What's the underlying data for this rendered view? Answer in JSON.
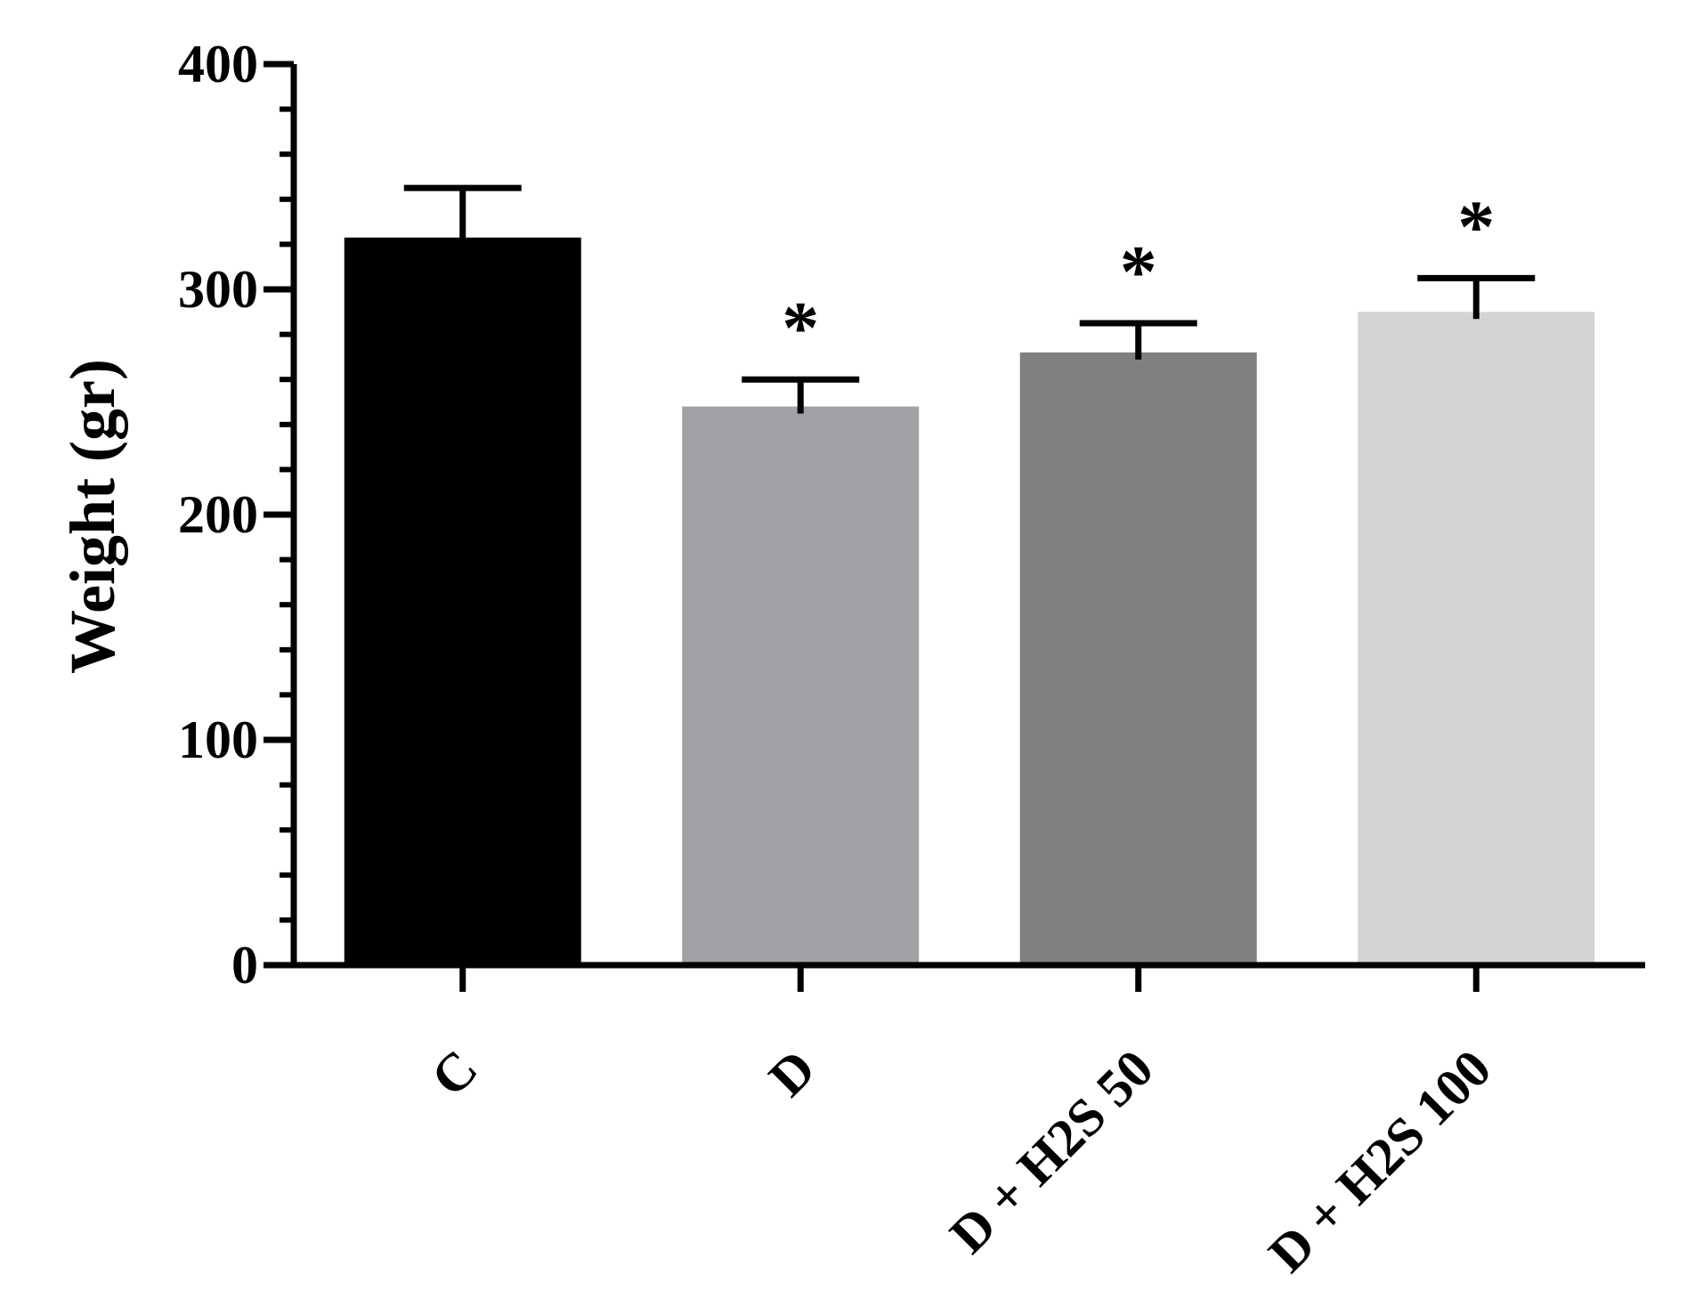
{
  "chart_data": {
    "type": "bar",
    "title": "",
    "xlabel": "",
    "ylabel": "Weight (gr)",
    "ylim": [
      0,
      400
    ],
    "yticks": [
      0,
      100,
      200,
      300,
      400
    ],
    "minor_tick_step": 20,
    "grid": false,
    "legend": "none",
    "categories": [
      "C",
      "D",
      "D + H2S 50",
      "D + H2S 100"
    ],
    "values": [
      323,
      248,
      272,
      290
    ],
    "errors": [
      22,
      12,
      13,
      15
    ],
    "colors": [
      "#000000",
      "#a1a1a6",
      "#808080",
      "#d4d4d4"
    ],
    "significance": [
      "",
      "*",
      "*",
      "*"
    ]
  }
}
